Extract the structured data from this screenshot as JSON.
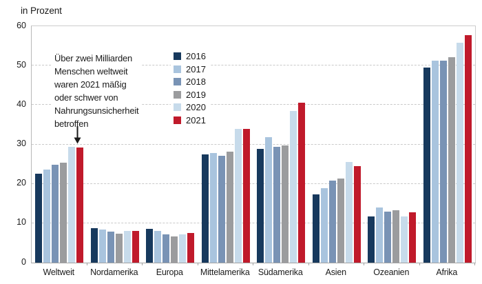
{
  "chart_data": {
    "type": "bar",
    "title": "in Prozent",
    "categories": [
      "Weltweit",
      "Nordamerika",
      "Europa",
      "Mittelamerika",
      "Südamerika",
      "Asien",
      "Ozeanien",
      "Afrika"
    ],
    "series": [
      {
        "name": "2016",
        "color": "#17395d",
        "values": [
          22.5,
          8.8,
          8.6,
          27.4,
          28.8,
          17.4,
          11.7,
          49.5
        ]
      },
      {
        "name": "2017",
        "color": "#a9c4de",
        "values": [
          23.7,
          8.4,
          8.1,
          27.9,
          31.8,
          18.9,
          14.0,
          51.3
        ]
      },
      {
        "name": "2018",
        "color": "#7993b5",
        "values": [
          24.9,
          7.8,
          7.2,
          27.2,
          29.4,
          20.9,
          13.0,
          51.2
        ]
      },
      {
        "name": "2019",
        "color": "#9b9c9e",
        "values": [
          25.3,
          7.3,
          6.7,
          28.2,
          29.8,
          21.3,
          13.3,
          52.2
        ]
      },
      {
        "name": "2020",
        "color": "#c7dbeb",
        "values": [
          29.4,
          8.1,
          7.2,
          34.0,
          38.5,
          25.6,
          11.7,
          55.8
        ]
      },
      {
        "name": "2021",
        "color": "#c01a2b",
        "values": [
          29.2,
          8.1,
          7.6,
          33.9,
          40.6,
          24.5,
          12.7,
          57.7
        ]
      }
    ],
    "xlabel": "",
    "ylabel": "in Prozent",
    "ylim": [
      0,
      60
    ],
    "yticks": [
      0,
      10,
      20,
      30,
      40,
      50,
      60
    ],
    "grid": "horizontal-dashed",
    "legend_position": "inside-top-left",
    "annotation": {
      "lines": [
        "Über zwei Milliarden",
        "Menschen weltweit",
        "waren 2021 mäßig",
        "oder schwer von",
        "Nahrungsunsicherheit",
        "betroffen"
      ],
      "arrow": "down",
      "points_at": "Weltweit 2021"
    }
  }
}
